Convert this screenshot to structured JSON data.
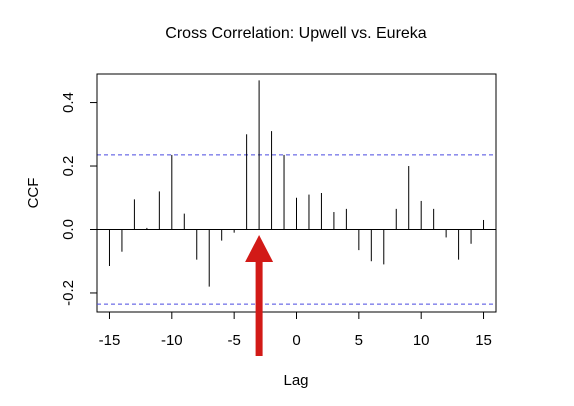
{
  "chart_data": {
    "type": "bar",
    "title": "Cross Correlation: Upwell vs. Eureka",
    "xlabel": "Lag",
    "ylabel": "CCF",
    "xlim": [
      -16,
      16
    ],
    "ylim": [
      -0.26,
      0.49
    ],
    "xticks": [
      -15,
      -10,
      -5,
      0,
      5,
      10,
      15
    ],
    "xtick_labels": [
      "-15",
      "-10",
      "-5",
      "0",
      "5",
      "10",
      "15"
    ],
    "yticks": [
      -0.2,
      0.0,
      0.2,
      0.4
    ],
    "ytick_labels": [
      "-0.2",
      "0.0",
      "0.2",
      "0.4"
    ],
    "confidence_bounds": [
      0.235,
      -0.235
    ],
    "grid": false,
    "series": [
      {
        "x": [
          -15,
          -14,
          -13,
          -12,
          -11,
          -10,
          -9,
          -8,
          -7,
          -6,
          -5,
          -4,
          -3,
          -2,
          -1,
          0,
          1,
          2,
          3,
          4,
          5,
          6,
          7,
          8,
          9,
          10,
          11,
          12,
          13,
          14,
          15
        ],
        "values": [
          -0.115,
          -0.07,
          0.095,
          0.005,
          0.12,
          0.235,
          0.05,
          -0.095,
          -0.18,
          -0.035,
          -0.01,
          0.3,
          0.47,
          0.31,
          0.235,
          0.1,
          0.11,
          0.115,
          0.055,
          0.065,
          -0.065,
          -0.1,
          -0.11,
          0.065,
          0.2,
          0.09,
          0.065,
          -0.025,
          -0.095,
          -0.045,
          0.03
        ]
      }
    ],
    "annotation": {
      "type": "arrow",
      "color": "#d21a17",
      "points_to_lag": -3
    }
  }
}
